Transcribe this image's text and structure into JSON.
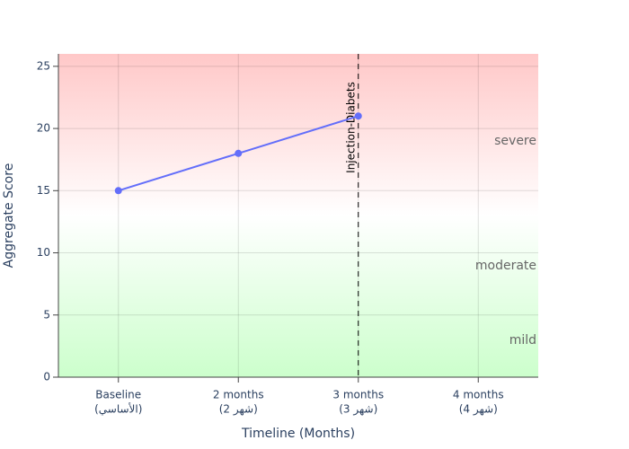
{
  "chart_data": {
    "type": "line",
    "x_label": "Timeline (Months)",
    "y_label": "Aggregate Score",
    "categories": [
      "Baseline",
      "2 months",
      "3 months",
      "4 months"
    ],
    "category_notes": [
      "(الأساسي)",
      "(شهر 2)",
      "(شهر 3)",
      "(شهر 4)"
    ],
    "series": [
      {
        "name": "Aggregate Score",
        "color": "#636efa",
        "values": [
          15,
          18,
          21,
          null
        ]
      }
    ],
    "ylim": [
      0,
      26
    ],
    "yticks": [
      0,
      5,
      10,
      15,
      20,
      25
    ],
    "grid": true,
    "event_category": "3 months",
    "event_label": "Injection-Diabets",
    "zones": [
      "severe",
      "moderate",
      "mild"
    ]
  }
}
